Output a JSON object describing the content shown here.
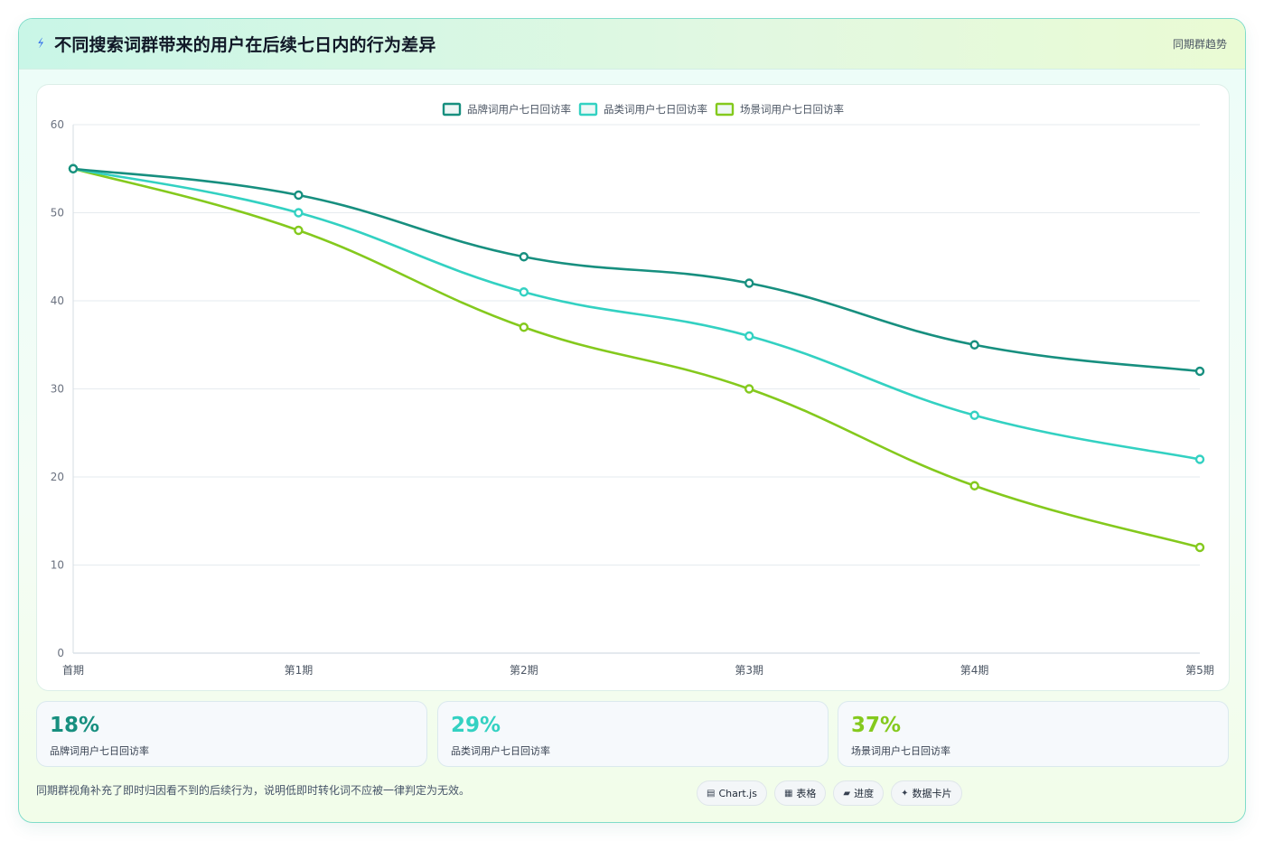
{
  "header": {
    "title": "不同搜索词群带来的用户在后续七日内的行为差异",
    "right_tag": "同期群趋势",
    "bolt_icon": "lightning-icon"
  },
  "chart_data": {
    "type": "line",
    "categories": [
      "首期",
      "第1期",
      "第2期",
      "第3期",
      "第4期",
      "第5期"
    ],
    "series": [
      {
        "name": "品牌词用户七日回访率",
        "color": "#178f7f",
        "values": [
          55,
          52,
          45,
          42,
          35,
          32
        ]
      },
      {
        "name": "品类词用户七日回访率",
        "color": "#33d1c2",
        "values": [
          55,
          50,
          41,
          36,
          27,
          22
        ]
      },
      {
        "name": "场景词用户七日回访率",
        "color": "#84c91d",
        "values": [
          55,
          48,
          37,
          30,
          19,
          12
        ]
      }
    ],
    "ylim": [
      0,
      60
    ],
    "yticks": [
      0,
      10,
      20,
      30,
      40,
      50,
      60
    ],
    "grid": true,
    "legend": "top-center",
    "xlabel": "",
    "ylabel": ""
  },
  "kpis": [
    {
      "value": "18%",
      "label": "品牌词用户七日回访率",
      "color": "#178f7f"
    },
    {
      "value": "29%",
      "label": "品类词用户七日回访率",
      "color": "#33d1c2"
    },
    {
      "value": "37%",
      "label": "场景词用户七日回访率",
      "color": "#84c91d"
    }
  ],
  "footnote": "同期群视角补充了即时归因看不到的后续行为，说明低即时转化词不应被一律判定为无效。",
  "chips": [
    {
      "icon": "chart-icon",
      "glyph": "▤",
      "label": "Chart.js"
    },
    {
      "icon": "table-icon",
      "glyph": "▦",
      "label": "表格"
    },
    {
      "icon": "progress-icon",
      "glyph": "▰",
      "label": "进度"
    },
    {
      "icon": "card-icon",
      "glyph": "✦",
      "label": "数据卡片"
    }
  ]
}
